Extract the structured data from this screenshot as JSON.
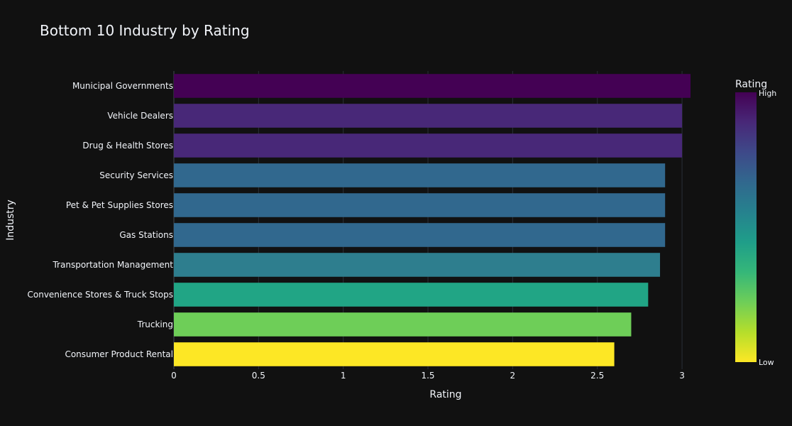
{
  "chart_data": {
    "type": "bar",
    "orientation": "horizontal",
    "title": "Bottom 10 Industry by Rating",
    "xlabel": "Rating",
    "ylabel": "Industry",
    "xlim": [
      0,
      3.05
    ],
    "x_ticks": [
      0,
      0.5,
      1,
      1.5,
      2,
      2.5,
      3
    ],
    "grid": true,
    "categories": [
      "Municipal Governments",
      "Vehicle Dealers",
      "Drug & Health Stores",
      "Security Services",
      "Pet & Pet Supplies Stores",
      "Gas Stations",
      "Transportation Management",
      "Convenience Stores & Truck Stops",
      "Trucking",
      "Consumer Product Rental"
    ],
    "values": [
      3.05,
      3.0,
      3.0,
      2.9,
      2.9,
      2.9,
      2.87,
      2.8,
      2.7,
      2.6
    ],
    "bar_colors": [
      "#440154",
      "#482878",
      "#482878",
      "#31688e",
      "#31688e",
      "#31688e",
      "#2e7e8e",
      "#21a585",
      "#6ece58",
      "#fde725"
    ],
    "colorbar": {
      "title": "Rating",
      "high_label": "High",
      "low_label": "Low",
      "placement": "right",
      "colorscale": [
        "#440154",
        "#482878",
        "#3e4989",
        "#31688e",
        "#26828e",
        "#1f9e89",
        "#35b779",
        "#6ece58",
        "#b5de2b",
        "#fde725"
      ]
    }
  },
  "colors": {
    "background": "#111111",
    "grid": "#2a3038",
    "text": "#f2f5fa"
  }
}
